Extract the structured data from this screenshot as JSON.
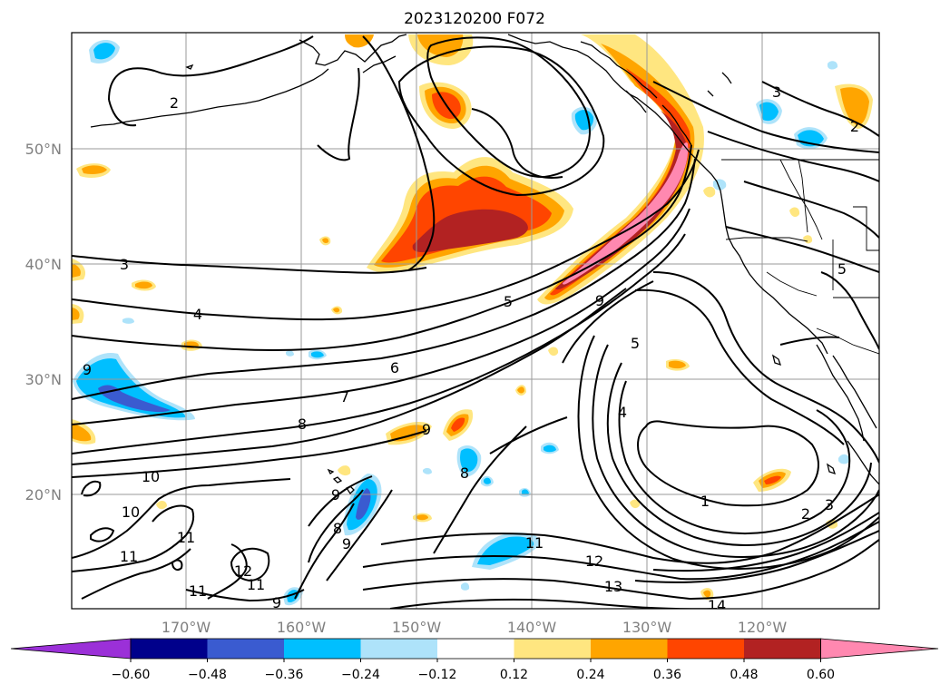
{
  "title": "2023120200 F072",
  "lat_ticks": [
    "50°N",
    "40°N",
    "30°N",
    "20°N"
  ],
  "lon_ticks": [
    "170°W",
    "160°W",
    "150°W",
    "140°W",
    "130°W",
    "120°W"
  ],
  "colorbar": {
    "ticks": [
      "−0.60",
      "−0.48",
      "−0.36",
      "−0.24",
      "−0.12",
      "0.12",
      "0.24",
      "0.36",
      "0.48",
      "0.60"
    ],
    "colors": {
      "under": "#9b30d8",
      "b1": "#00008b",
      "b2": "#3a5bd0",
      "b3": "#00bfff",
      "b4": "#aee3fa",
      "b5": "#ffffff",
      "b6": "#ffe680",
      "b7": "#ffa500",
      "b8": "#ff4500",
      "b9": "#b22222",
      "over": "#ff88b0"
    }
  },
  "contour_labels": [
    "2",
    "3",
    "4",
    "5",
    "6",
    "7",
    "8",
    "9",
    "9",
    "10",
    "10",
    "11",
    "11",
    "11",
    "12",
    "12",
    "13",
    "14",
    "1",
    "2",
    "3",
    "2",
    "3",
    "5",
    "5",
    "4",
    "9",
    "9",
    "8",
    "8",
    "9",
    "9",
    "11",
    "11"
  ]
}
